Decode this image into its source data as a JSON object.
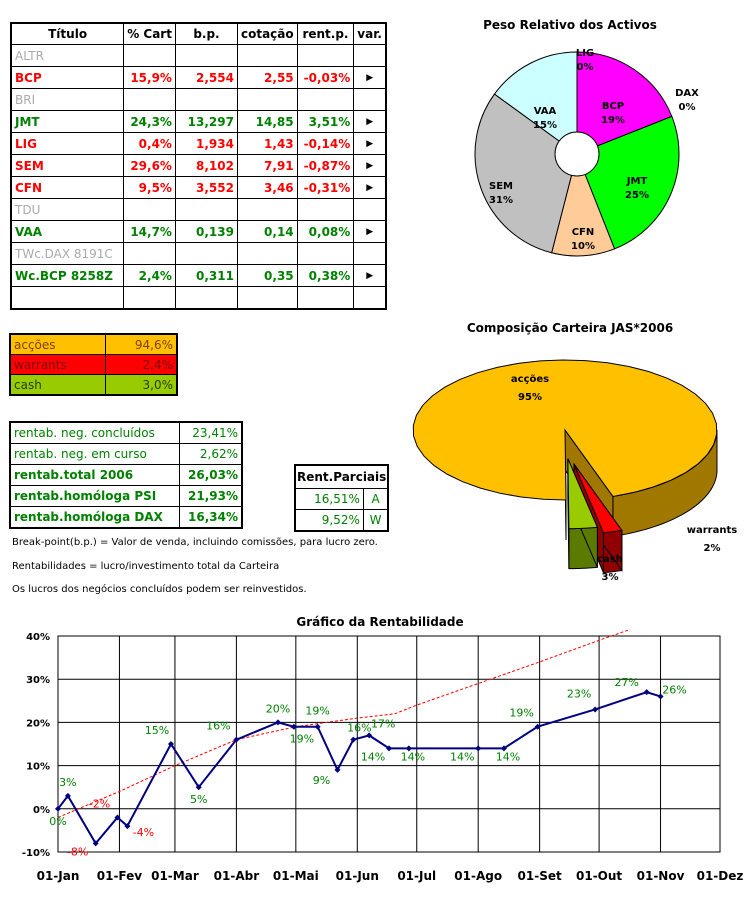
{
  "portfolio": {
    "headers": [
      "Título",
      "% Cart",
      "b.p.",
      "cotação",
      "rent.p.",
      "var."
    ],
    "rows": [
      {
        "name": "ALTR",
        "pct": "",
        "bp": "",
        "cot": "",
        "rent": "",
        "var": "",
        "style": "grey"
      },
      {
        "name": "BCP",
        "pct": "15,9%",
        "bp": "2,554",
        "cot": "2,55",
        "rent": "-0,03%",
        "var": "▶",
        "style": "red"
      },
      {
        "name": "BRI",
        "pct": "",
        "bp": "",
        "cot": "",
        "rent": "",
        "var": "",
        "style": "grey"
      },
      {
        "name": "JMT",
        "pct": "24,3%",
        "bp": "13,297",
        "cot": "14,85",
        "rent": "3,51%",
        "var": "▶",
        "style": "green"
      },
      {
        "name": "LIG",
        "pct": "0,4%",
        "bp": "1,934",
        "cot": "1,43",
        "rent": "-0,14%",
        "var": "▶",
        "style": "red"
      },
      {
        "name": "SEM",
        "pct": "29,6%",
        "bp": "8,102",
        "cot": "7,91",
        "rent": "-0,87%",
        "var": "▶",
        "style": "red"
      },
      {
        "name": "CFN",
        "pct": "9,5%",
        "bp": "3,552",
        "cot": "3,46",
        "rent": "-0,31%",
        "var": "▶",
        "style": "red"
      },
      {
        "name": "TDU",
        "pct": "",
        "bp": "",
        "cot": "",
        "rent": "",
        "var": "",
        "style": "grey"
      },
      {
        "name": "VAA",
        "pct": "14,7%",
        "bp": "0,139",
        "cot": "0,14",
        "rent": "0,08%",
        "var": "▶",
        "style": "green"
      },
      {
        "name": "TWc.DAX 8191C",
        "pct": "",
        "bp": "",
        "cot": "",
        "rent": "",
        "var": "",
        "style": "grey"
      },
      {
        "name": "Wc.BCP 8258Z",
        "pct": "2,4%",
        "bp": "0,311",
        "cot": "0,35",
        "rent": "0,38%",
        "var": "▶",
        "style": "green"
      },
      {
        "name": "",
        "pct": "",
        "bp": "",
        "cot": "",
        "rent": "",
        "var": "",
        "style": "grey"
      }
    ]
  },
  "composition": [
    {
      "label": "acções",
      "value": "94,6%",
      "bg": "#ffc000",
      "color": "#7f3f00"
    },
    {
      "label": "warrants",
      "value": "2,4%",
      "bg": "#ff0000",
      "color": "#7f0000"
    },
    {
      "label": "cash",
      "value": "3,0%",
      "bg": "#99cc00",
      "color": "#1f3f00"
    }
  ],
  "rentab": [
    {
      "label": "rentab. neg. concluídos",
      "value": "23,41%",
      "bold": false
    },
    {
      "label": "rentab. neg. em curso",
      "value": "2,62%",
      "bold": false
    },
    {
      "label": "rentab.total 2006",
      "value": "26,03%",
      "bold": true
    },
    {
      "label": "rentab.homóloga PSI",
      "value": "21,93%",
      "bold": true
    },
    {
      "label": "rentab.homóloga DAX",
      "value": "16,34%",
      "bold": true
    }
  ],
  "parciais": {
    "header": "Rent.Parciais",
    "rows": [
      {
        "value": "16,51%",
        "code": "A"
      },
      {
        "value": "9,52%",
        "code": "W"
      }
    ]
  },
  "notes": [
    "Break-point(b.p.) = Valor de venda, incluindo comissões, para lucro zero.",
    "Rentabilidades = lucro/investimento total da Carteira",
    "Os lucros dos negócios concluídos podem ser reinvestidos."
  ],
  "chart_data": [
    {
      "type": "pie",
      "title": "Peso Relativo dos Activos",
      "slices": [
        {
          "name": "BCP",
          "value": 19,
          "label": "19%",
          "color": "#ff00ff"
        },
        {
          "name": "DAX",
          "value": 0,
          "label": "0%",
          "color": "#ffffff"
        },
        {
          "name": "JMT",
          "value": 25,
          "label": "25%",
          "color": "#00ff00"
        },
        {
          "name": "CFN",
          "value": 10,
          "label": "10%",
          "color": "#ffcc99"
        },
        {
          "name": "SEM",
          "value": 31,
          "label": "31%",
          "color": "#c0c0c0"
        },
        {
          "name": "VAA",
          "value": 15,
          "label": "15%",
          "color": "#ccffff"
        },
        {
          "name": "LIG",
          "value": 0,
          "label": "0%",
          "color": "#ffff00"
        }
      ],
      "donut": true
    },
    {
      "type": "pie",
      "title": "Composição Carteira JAS*2006",
      "slices": [
        {
          "name": "acções",
          "value": 95,
          "label": "95%",
          "color": "#ffc000"
        },
        {
          "name": "warrants",
          "value": 2,
          "label": "2%",
          "color": "#ff0000"
        },
        {
          "name": "cash",
          "value": 3,
          "label": "3%",
          "color": "#99cc00"
        }
      ],
      "style": "3d-exploded"
    },
    {
      "type": "line",
      "title": "Gráfico da Rentabilidade",
      "x_ticks": [
        "01-Jan",
        "01-Fev",
        "01-Mar",
        "01-Abr",
        "01-Mai",
        "01-Jun",
        "01-Jul",
        "01-Ago",
        "01-Set",
        "01-Out",
        "01-Nov",
        "01-Dez"
      ],
      "ylim": [
        -10,
        40
      ],
      "y_ticks": [
        "-10%",
        "0%",
        "10%",
        "20%",
        "30%",
        "40%"
      ],
      "series": [
        {
          "style": "main",
          "color": "#000080",
          "points": [
            {
              "x": "2006-01-01",
              "y": 0,
              "label": "0%"
            },
            {
              "x": "2006-01-06",
              "y": 3,
              "label": "3%"
            },
            {
              "x": "2006-01-20",
              "y": -8,
              "label": "-8%"
            },
            {
              "x": "2006-01-31",
              "y": -2,
              "label": "-2%"
            },
            {
              "x": "2006-02-05",
              "y": -4,
              "label": "-4%"
            },
            {
              "x": "2006-02-27",
              "y": 15,
              "label": "15%"
            },
            {
              "x": "2006-03-13",
              "y": 5,
              "label": "5%"
            },
            {
              "x": "2006-04-01",
              "y": 16,
              "label": "16%"
            },
            {
              "x": "2006-04-22",
              "y": 20,
              "label": "20%"
            },
            {
              "x": "2006-04-30",
              "y": 19,
              "label": "19%"
            },
            {
              "x": "2006-05-12",
              "y": 19,
              "label": "19%"
            },
            {
              "x": "2006-05-22",
              "y": 9,
              "label": "9%"
            },
            {
              "x": "2006-05-30",
              "y": 16,
              "label": "16%"
            },
            {
              "x": "2006-06-07",
              "y": 17,
              "label": "17%"
            },
            {
              "x": "2006-06-17",
              "y": 14,
              "label": "14%"
            },
            {
              "x": "2006-06-27",
              "y": 14,
              "label": "14%"
            },
            {
              "x": "2006-08-01",
              "y": 14,
              "label": "14%"
            },
            {
              "x": "2006-08-14",
              "y": 14,
              "label": "14%"
            },
            {
              "x": "2006-08-31",
              "y": 19,
              "label": "19%"
            },
            {
              "x": "2006-09-29",
              "y": 23,
              "label": "23%"
            },
            {
              "x": "2006-10-25",
              "y": 27,
              "label": "27%"
            },
            {
              "x": "2006-11-01",
              "y": 26,
              "label": "26%"
            }
          ]
        },
        {
          "style": "dashed",
          "color": "#ff0000",
          "points": [
            {
              "x": "2006-01-01",
              "y": -2
            },
            {
              "x": "2006-02-01",
              "y": 4
            },
            {
              "x": "2006-03-01",
              "y": 10
            },
            {
              "x": "2006-04-01",
              "y": 16
            },
            {
              "x": "2006-05-01",
              "y": 19
            },
            {
              "x": "2006-06-01",
              "y": 21
            },
            {
              "x": "2006-06-20",
              "y": 22
            },
            {
              "x": "2006-07-01",
              "y": 24
            },
            {
              "x": "2006-08-01",
              "y": 29
            },
            {
              "x": "2006-09-01",
              "y": 34
            },
            {
              "x": "2006-10-01",
              "y": 39
            },
            {
              "x": "2006-11-01",
              "y": 44
            },
            {
              "x": "2006-11-15",
              "y": 46
            }
          ]
        }
      ]
    }
  ]
}
